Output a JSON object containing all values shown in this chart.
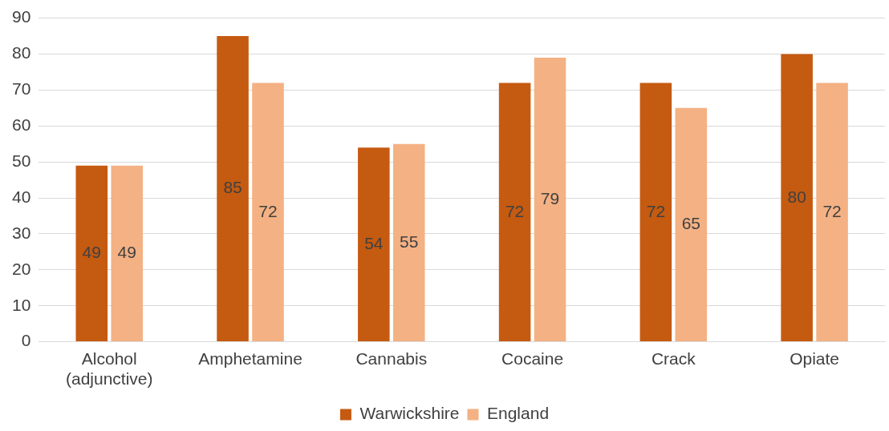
{
  "chart_data": {
    "type": "bar",
    "categories": [
      "Alcohol (adjunctive)",
      "Amphetamine",
      "Cannabis",
      "Cocaine",
      "Crack",
      "Opiate"
    ],
    "series": [
      {
        "name": "Warwickshire",
        "color": "#c55a11",
        "values": [
          49,
          85,
          54,
          72,
          72,
          80
        ]
      },
      {
        "name": "England",
        "color": "#f4b183",
        "values": [
          49,
          72,
          55,
          79,
          65,
          72
        ]
      }
    ],
    "ylim": [
      0,
      90
    ],
    "yticks": [
      0,
      10,
      20,
      30,
      40,
      50,
      60,
      70,
      80,
      90
    ],
    "grid": "y",
    "legend": "bottom",
    "data_labels": true
  }
}
